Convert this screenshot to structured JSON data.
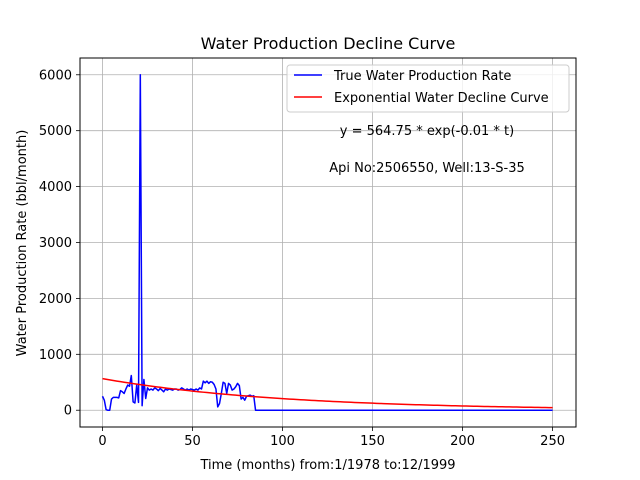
{
  "chart_data": {
    "type": "line",
    "title": "Water Production Decline Curve",
    "xlabel": "Time (months) from:1/1978 to:12/1999",
    "ylabel": "Water Production Rate (bbl/month)",
    "xlim": [
      -12.5,
      263
    ],
    "ylim": [
      -300,
      6300
    ],
    "xticks": [
      0,
      50,
      100,
      150,
      200,
      250
    ],
    "yticks": [
      0,
      1000,
      2000,
      3000,
      4000,
      5000,
      6000
    ],
    "grid": true,
    "legend_position": "top-right",
    "annotations": [
      "y = 564.75 * exp(-0.01 * t)",
      "Api No:2506550, Well:13-S-35"
    ],
    "series": [
      {
        "name": "True Water Production Rate",
        "color": "#0000ff",
        "x": [
          0,
          1,
          2,
          3,
          4,
          5,
          6,
          7,
          8,
          9,
          10,
          11,
          12,
          13,
          14,
          15,
          16,
          17,
          18,
          19,
          20,
          21,
          22,
          23,
          24,
          25,
          26,
          27,
          28,
          29,
          30,
          31,
          32,
          33,
          34,
          35,
          36,
          37,
          38,
          39,
          40,
          41,
          42,
          43,
          44,
          45,
          46,
          47,
          48,
          49,
          50,
          51,
          52,
          53,
          54,
          55,
          56,
          57,
          58,
          59,
          60,
          61,
          62,
          63,
          64,
          65,
          66,
          67,
          68,
          69,
          70,
          71,
          72,
          73,
          74,
          75,
          76,
          77,
          78,
          79,
          80,
          81,
          82,
          83,
          84,
          85,
          90,
          100,
          120,
          150,
          180,
          200,
          220,
          250
        ],
        "y": [
          250,
          180,
          10,
          0,
          0,
          200,
          230,
          230,
          230,
          220,
          350,
          330,
          300,
          380,
          450,
          430,
          620,
          150,
          130,
          450,
          140,
          6000,
          80,
          550,
          210,
          400,
          360,
          380,
          360,
          400,
          380,
          350,
          390,
          360,
          330,
          380,
          360,
          380,
          370,
          360,
          380,
          380,
          360,
          370,
          400,
          380,
          360,
          380,
          360,
          380,
          370,
          360,
          380,
          360,
          400,
          380,
          520,
          490,
          520,
          480,
          510,
          500,
          460,
          380,
          60,
          120,
          300,
          500,
          480,
          300,
          480,
          450,
          360,
          380,
          420,
          480,
          440,
          200,
          230,
          180,
          250,
          260,
          270,
          250,
          260,
          0,
          0,
          0,
          0,
          0,
          0,
          0,
          0,
          0
        ]
      },
      {
        "name": "Exponential Water Decline Curve",
        "color": "#ff0000",
        "fit": {
          "a": 564.75,
          "b": 0.01,
          "x_start": 0,
          "x_end": 250
        }
      }
    ]
  }
}
